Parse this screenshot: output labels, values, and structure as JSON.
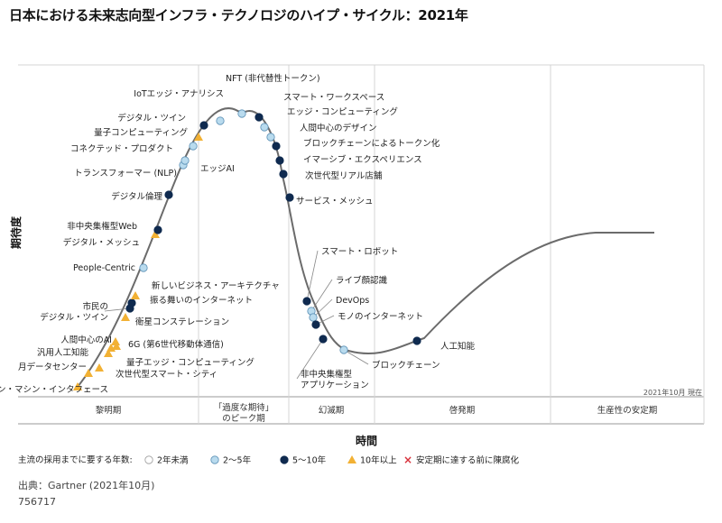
{
  "title": "日本における未来志向型インフラ・テクノロジのハイプ・サイクル：2021年",
  "colors": {
    "curve": "#6b6b6b",
    "lt2": "#ffffff",
    "y2to5": "#b9dbee",
    "y5to10": "#0f2a4f",
    "y10plus": "#f2b134",
    "obsolete": "#d8323c"
  },
  "chart_data": {
    "type": "scatter",
    "ylabel": "期待度",
    "xlabel": "時間",
    "date_note": "2021年10月 現在",
    "phases": [
      "黎明期",
      "「過度な期待」のピーク期",
      "幻滅期",
      "啓発期",
      "生産性の安定期"
    ],
    "legend_title": "主流の採用までに要する年数:",
    "legend": [
      {
        "key": "lt2",
        "label": "2年未満"
      },
      {
        "key": "y2to5",
        "label": "2〜5年"
      },
      {
        "key": "y5to10",
        "label": "5〜10年"
      },
      {
        "key": "y10plus",
        "label": "10年以上"
      },
      {
        "key": "obsolete",
        "label": "安定期に達する前に陳腐化"
      }
    ],
    "points": [
      {
        "label": "双方向ブレイン・マシン・インタフェース",
        "t": 0.0,
        "cat": "y10plus"
      },
      {
        "label": "月データセンター",
        "t": 0.02,
        "cat": "y10plus"
      },
      {
        "label": "次世代型スマート・シティ",
        "t": 0.04,
        "cat": "y10plus"
      },
      {
        "label": "汎用人工知能",
        "t": 0.06,
        "cat": "y10plus"
      },
      {
        "label": "量子エッジ・コンピューティング",
        "t": 0.08,
        "cat": "y10plus"
      },
      {
        "label": "人間中心のAI",
        "t": 0.1,
        "cat": "y10plus"
      },
      {
        "label": "6G (第6世代移動体通信)",
        "t": 0.12,
        "cat": "y10plus"
      },
      {
        "label": "衛星コンステレーション",
        "t": 0.15,
        "cat": "y10plus"
      },
      {
        "label": "市民のデジタル・ツイン",
        "t": 0.18,
        "cat": "y5to10"
      },
      {
        "label": "振る舞いのインターネット",
        "t": 0.2,
        "cat": "y5to10"
      },
      {
        "label": "新しいビジネス・アーキテクチャ",
        "t": 0.22,
        "cat": "y10plus"
      },
      {
        "label": "People-Centric",
        "t": 0.26,
        "cat": "y2to5"
      },
      {
        "label": "デジタル・メッシュ",
        "t": 0.3,
        "cat": "y10plus"
      },
      {
        "label": "非中央集権型Web",
        "t": 0.31,
        "cat": "y5to10"
      },
      {
        "label": "デジタル倫理",
        "t": 0.37,
        "cat": "y5to10"
      },
      {
        "label": "トランスフォーマー (NLP)",
        "t": 0.43,
        "cat": "y2to5"
      },
      {
        "label": "エッジAI",
        "t": 0.45,
        "cat": "y2to5"
      },
      {
        "label": "コネクテッド・プロダクト",
        "t": 0.48,
        "cat": "y2to5"
      },
      {
        "label": "量子コンピューティング",
        "t": 0.5,
        "cat": "y10plus"
      },
      {
        "label": "デジタル・ツイン",
        "t": 0.52,
        "cat": "y5to10"
      },
      {
        "label": "IoTエッジ・アナリシス",
        "t": 0.61,
        "cat": "y2to5"
      },
      {
        "label": "NFT (非代替性トークン)",
        "t": 0.7,
        "cat": "y2to5"
      },
      {
        "label": "スマート・ワークスペース",
        "t": 0.74,
        "cat": "y5to10"
      },
      {
        "label": "エッジ・コンピューティング",
        "t": 0.77,
        "cat": "y2to5"
      },
      {
        "label": "人間中心のデザイン",
        "t": 0.8,
        "cat": "y2to5"
      },
      {
        "label": "ブロックチェーンによるトークン化",
        "t": 0.83,
        "cat": "y5to10"
      },
      {
        "label": "イマーシブ・エクスペリエンス",
        "t": 0.86,
        "cat": "y5to10"
      },
      {
        "label": "次世代型リアル店舗",
        "t": 0.89,
        "cat": "y5to10"
      },
      {
        "label": "サービス・メッシュ",
        "t": 0.93,
        "cat": "y5to10"
      },
      {
        "label": "スマート・ロボット",
        "t": 1.0,
        "cat": "y5to10"
      },
      {
        "label": "ライブ顔認識",
        "t": 1.03,
        "cat": "y2to5"
      },
      {
        "label": "DevOps",
        "t": 1.06,
        "cat": "y2to5"
      },
      {
        "label": "モノのインターネット",
        "t": 1.09,
        "cat": "y5to10"
      },
      {
        "label": "非中央集権型アプリケーション",
        "t": 1.12,
        "cat": "y5to10"
      },
      {
        "label": "ブロックチェーン",
        "t": 1.18,
        "cat": "y2to5"
      },
      {
        "label": "人工知能",
        "t": 1.3,
        "cat": "y5to10"
      }
    ]
  },
  "footer": {
    "source": "出典：Gartner (2021年10月)",
    "id": "756717"
  }
}
